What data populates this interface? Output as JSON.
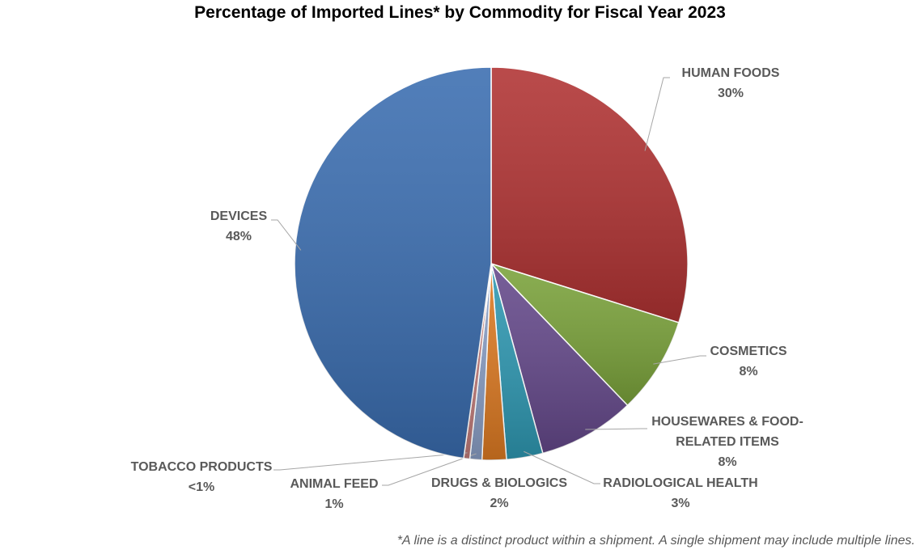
{
  "chart_data": {
    "type": "pie",
    "title": "Percentage of Imported Lines* by Commodity for Fiscal Year 2023",
    "footnote": "*A line is a distinct product within a shipment. A single shipment may include multiple lines.",
    "categories": [
      "HUMAN FOODS",
      "COSMETICS",
      "HOUSEWARES & FOOD-RELATED ITEMS",
      "RADIOLOGICAL HEALTH",
      "DRUGS & BIOLOGICS",
      "ANIMAL FEED",
      "TOBACCO PRODUCTS",
      "DEVICES"
    ],
    "values": [
      30,
      8,
      8,
      3,
      2,
      1,
      0.5,
      48
    ],
    "value_labels": [
      "30%",
      "8%",
      "8%",
      "3%",
      "2%",
      "1%",
      "<1%",
      "48%"
    ],
    "colors": [
      "#b03232",
      "#7aa23a",
      "#64488a",
      "#2e98b2",
      "#dd7a22",
      "#8a9fc6",
      "#c27c7a",
      "#3a6db0"
    ]
  }
}
